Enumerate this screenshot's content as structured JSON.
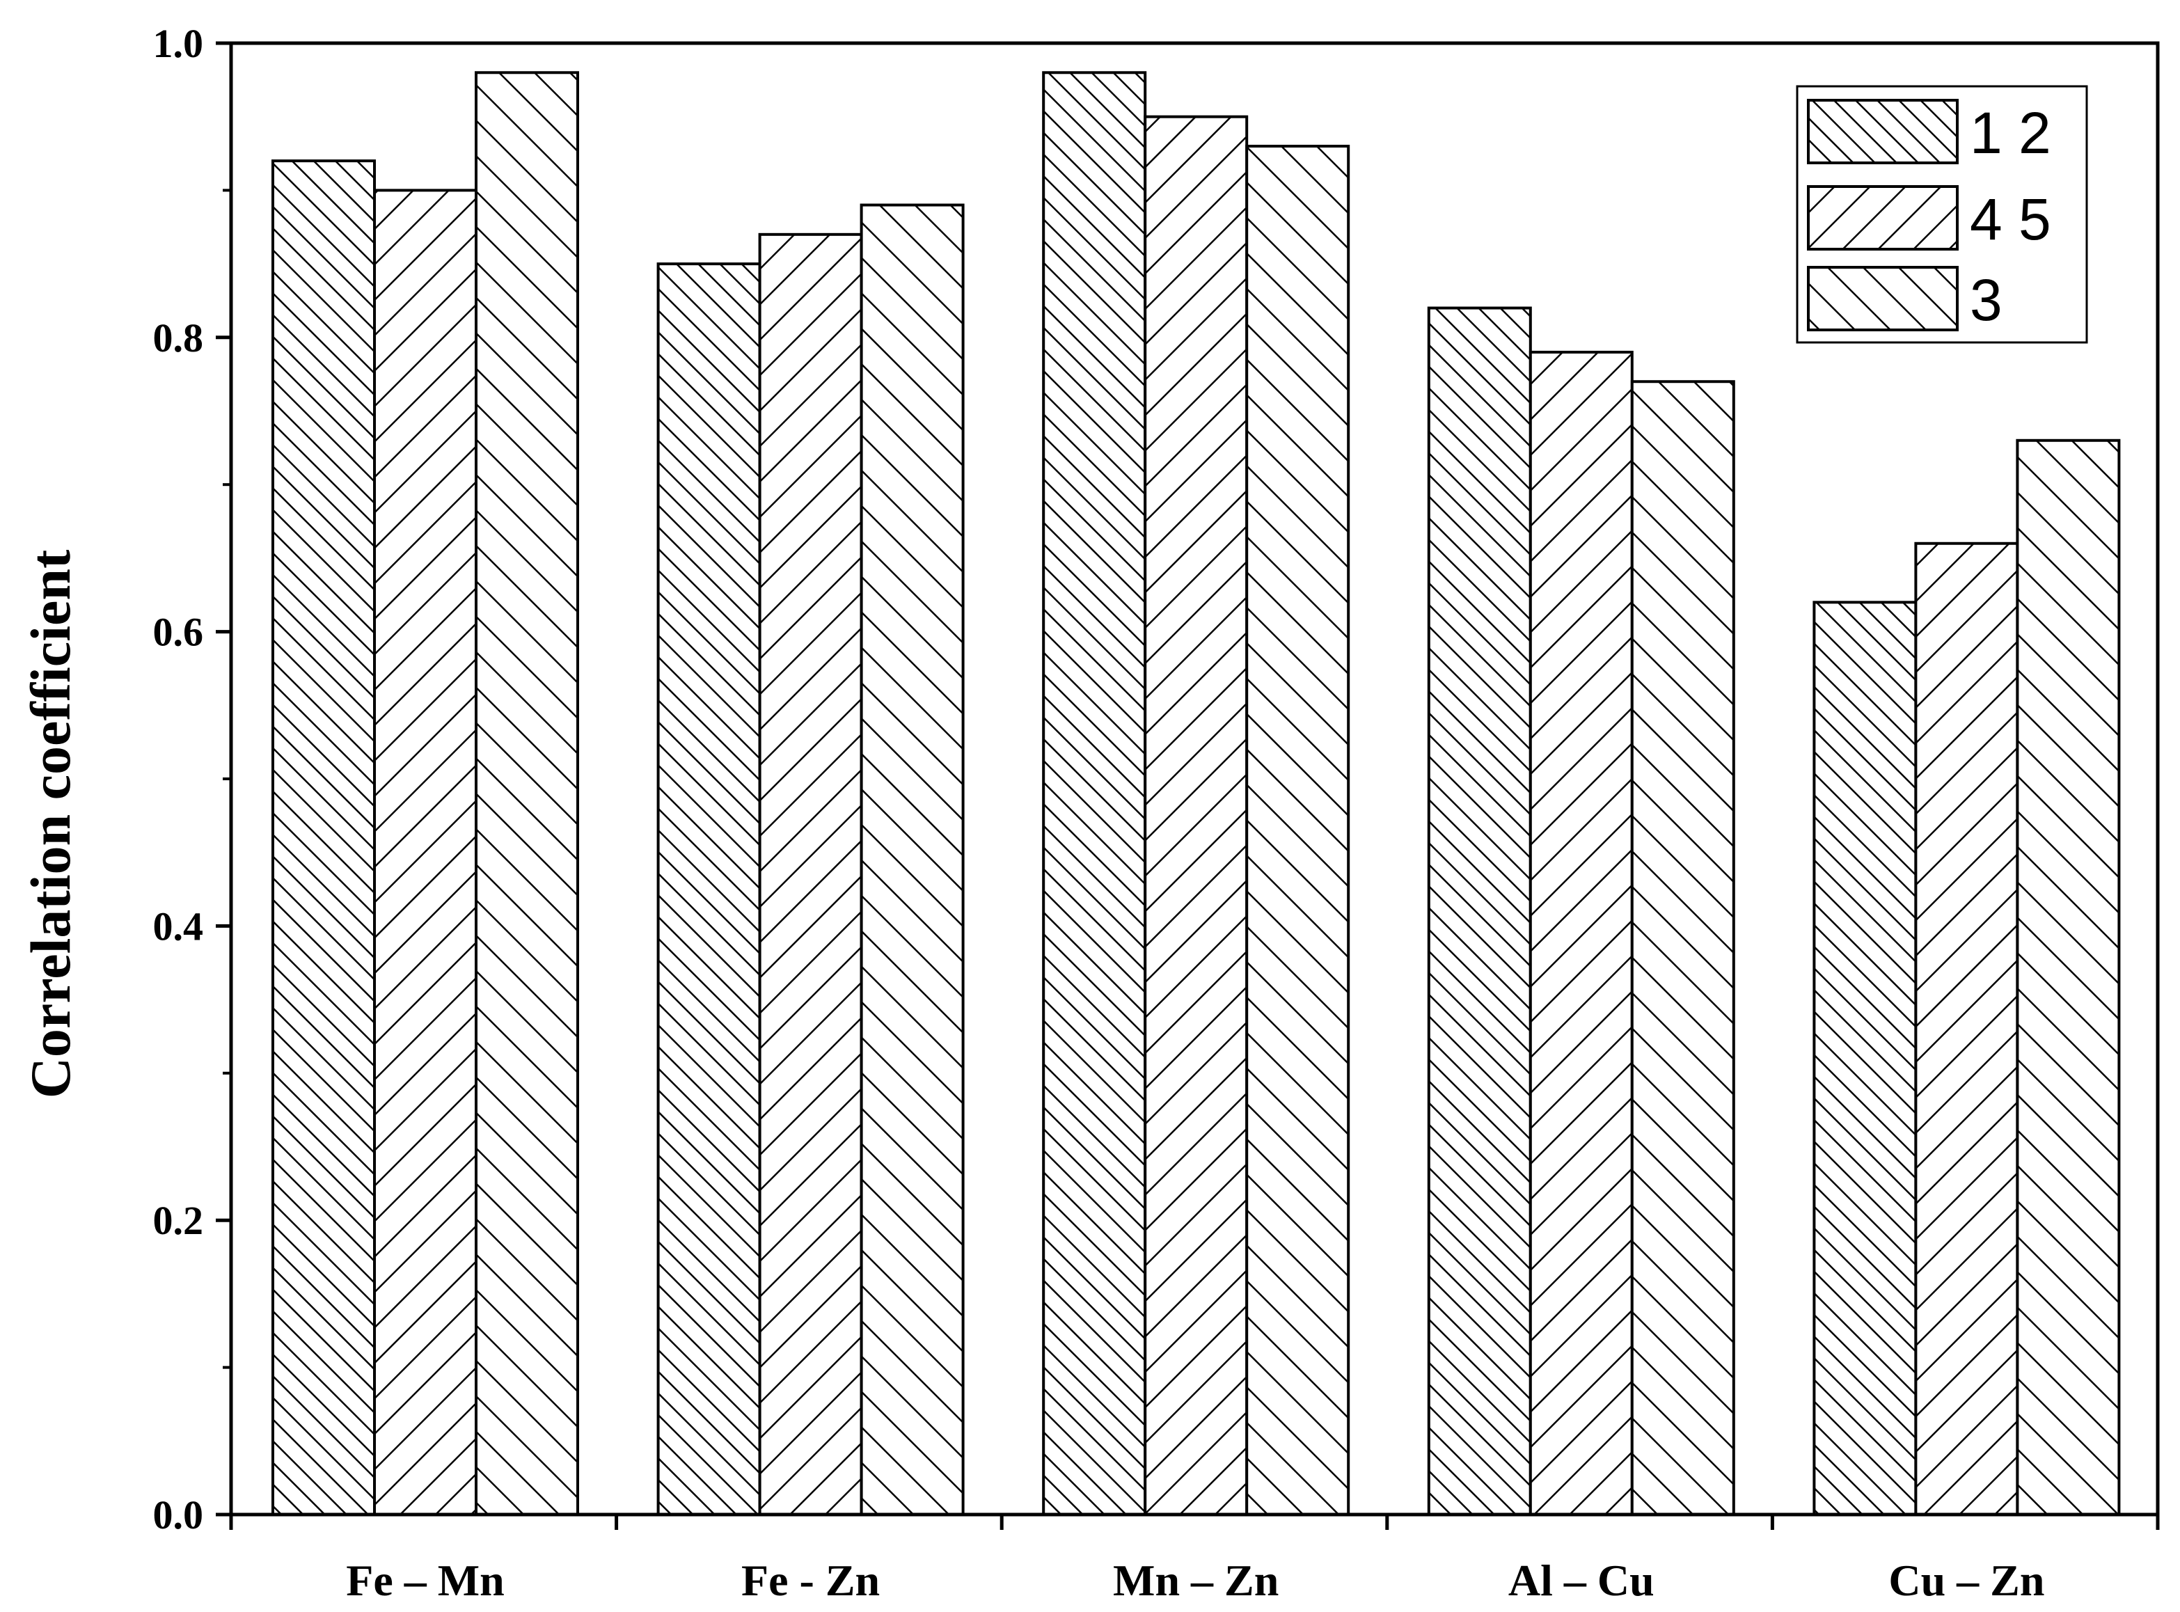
{
  "chart_data": {
    "type": "bar",
    "title": "",
    "xlabel": "",
    "ylabel": "Correlation coefficient",
    "categories": [
      "Fe – Mn",
      "Fe - Zn",
      "Mn – Zn",
      "Al – Cu",
      "Cu – Zn"
    ],
    "series": [
      {
        "name": "1 2",
        "pattern": "hatch-forward-dense",
        "values": [
          0.92,
          0.85,
          0.98,
          0.82,
          0.62
        ]
      },
      {
        "name": "4 5",
        "pattern": "hatch-backward",
        "values": [
          0.9,
          0.87,
          0.95,
          0.79,
          0.66
        ]
      },
      {
        "name": "3",
        "pattern": "hatch-forward",
        "values": [
          0.98,
          0.89,
          0.93,
          0.77,
          0.73
        ]
      }
    ],
    "ylim": [
      0,
      1.0
    ],
    "yticks": [
      "0.0",
      "0.2",
      "0.4",
      "0.6",
      "0.8",
      "1.0"
    ],
    "grid": false,
    "legend_position": "top-right",
    "colors": {
      "bar_fill": "#ffffff",
      "stroke": "#000000"
    }
  }
}
